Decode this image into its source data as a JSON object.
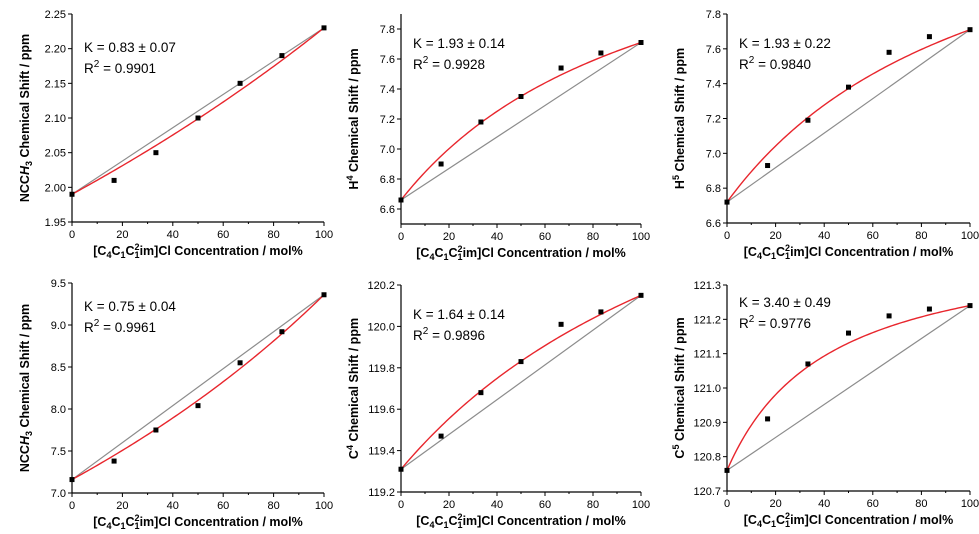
{
  "colors": {
    "fit": "#e8262d",
    "linear": "#8c8c8c",
    "points": "#000000"
  },
  "chart_data": [
    {
      "type": "scatter",
      "panel": "top-left",
      "ylabel": "NCCH3 Chemical Shift / ppm",
      "xlabel": "[C4C1C12im]Cl Concentration / mol%",
      "ylim": [
        1.95,
        2.25
      ],
      "xlim": [
        0,
        100
      ],
      "xticks": [
        0,
        20,
        40,
        60,
        80,
        100
      ],
      "yticks": [
        1.95,
        2.0,
        2.05,
        2.1,
        2.15,
        2.2,
        2.25
      ],
      "ytick_labels": [
        "1.95",
        "2.00",
        "2.05",
        "2.10",
        "2.15",
        "2.20",
        "2.25"
      ],
      "annotation_k": "K = 0.83 ± 0.07",
      "annotation_r2_label": "R",
      "annotation_r2_value": " = 0.9901",
      "K": 0.83,
      "x": [
        0,
        16.7,
        33.3,
        50,
        66.7,
        83.3,
        100
      ],
      "y": [
        1.99,
        2.01,
        2.05,
        2.1,
        2.15,
        2.19,
        2.23
      ]
    },
    {
      "type": "scatter",
      "panel": "top-middle",
      "ylabel": "H4 Chemical Shift / ppm",
      "xlabel": "[C4C1C12im]Cl Concentration / mol%",
      "ylim": [
        6.5,
        7.9
      ],
      "xlim": [
        0,
        100
      ],
      "xticks": [
        0,
        20,
        40,
        60,
        80,
        100
      ],
      "yticks": [
        6.6,
        6.8,
        7.0,
        7.2,
        7.4,
        7.6,
        7.8
      ],
      "ytick_labels": [
        "6.6",
        "6.8",
        "7.0",
        "7.2",
        "7.4",
        "7.6",
        "7.8"
      ],
      "annotation_k": "K = 1.93 ± 0.14",
      "annotation_r2_label": "R",
      "annotation_r2_value": " = 0.9928",
      "K": 1.93,
      "x": [
        0,
        16.7,
        33.3,
        50,
        66.7,
        83.3,
        100
      ],
      "y": [
        6.66,
        6.9,
        7.18,
        7.35,
        7.54,
        7.64,
        7.71
      ]
    },
    {
      "type": "scatter",
      "panel": "top-right",
      "ylabel": "H5 Chemical Shift / ppm",
      "xlabel": "[C4C1C12im]Cl Concentration / mol%",
      "ylim": [
        6.6,
        7.8
      ],
      "xlim": [
        0,
        100
      ],
      "xticks": [
        0,
        20,
        40,
        60,
        80,
        100
      ],
      "yticks": [
        6.6,
        6.8,
        7.0,
        7.2,
        7.4,
        7.6,
        7.8
      ],
      "ytick_labels": [
        "6.6",
        "6.8",
        "7.0",
        "7.2",
        "7.4",
        "7.6",
        "7.8"
      ],
      "annotation_k": "K = 1.93 ± 0.22",
      "annotation_r2_label": "R",
      "annotation_r2_value": " = 0.9840",
      "K": 1.93,
      "x": [
        0,
        16.7,
        33.3,
        50,
        66.7,
        83.3,
        100
      ],
      "y": [
        6.72,
        6.93,
        7.19,
        7.38,
        7.58,
        7.67,
        7.71
      ]
    },
    {
      "type": "scatter",
      "panel": "bottom-left",
      "ylabel": "NCCH3 Chemical Shift / ppm",
      "xlabel": "[C4C1C12im]Cl Concentration / mol%",
      "ylim": [
        7.0,
        9.5
      ],
      "xlim": [
        0,
        100
      ],
      "xticks": [
        0,
        20,
        40,
        60,
        80,
        100
      ],
      "yticks": [
        7.0,
        7.5,
        8.0,
        8.5,
        9.0,
        9.5
      ],
      "ytick_labels": [
        "7.0",
        "7.5",
        "8.0",
        "8.5",
        "9.0",
        "9.5"
      ],
      "annotation_k": "K = 0.75 ± 0.04",
      "annotation_r2_label": "R",
      "annotation_r2_value": " = 0.9961",
      "K": 0.75,
      "x": [
        0,
        16.7,
        33.3,
        50,
        66.7,
        83.3,
        100
      ],
      "y": [
        7.16,
        7.38,
        7.75,
        8.04,
        8.55,
        8.92,
        9.36
      ]
    },
    {
      "type": "scatter",
      "panel": "bottom-middle",
      "ylabel": "C4 Chemical Shift / ppm",
      "xlabel": "[C4C1C12im]Cl Concentration / mol%",
      "ylim": [
        119.2,
        120.2
      ],
      "xlim": [
        0,
        100
      ],
      "xticks": [
        0,
        20,
        40,
        60,
        80,
        100
      ],
      "yticks": [
        119.2,
        119.4,
        119.6,
        119.8,
        120.0,
        120.2
      ],
      "ytick_labels": [
        "119.2",
        "119.4",
        "119.6",
        "119.8",
        "120.0",
        "120.2"
      ],
      "annotation_k": "K = 1.64 ± 0.14",
      "annotation_r2_label": "R",
      "annotation_r2_value": " = 0.9896",
      "K": 1.64,
      "x": [
        0,
        16.7,
        33.3,
        50,
        66.7,
        83.3,
        100
      ],
      "y": [
        119.31,
        119.47,
        119.68,
        119.83,
        120.01,
        120.07,
        120.15
      ]
    },
    {
      "type": "scatter",
      "panel": "bottom-right",
      "ylabel": "C5 Chemical Shift / ppm",
      "xlabel": "[C4C1C12im]Cl Concentration / mol%",
      "ylim": [
        120.7,
        121.3
      ],
      "xlim": [
        0,
        100
      ],
      "xticks": [
        0,
        20,
        40,
        60,
        80,
        100
      ],
      "yticks": [
        120.7,
        120.8,
        120.9,
        121.0,
        121.1,
        121.2,
        121.3
      ],
      "ytick_labels": [
        "120.7",
        "120.8",
        "120.9",
        "121.0",
        "121.1",
        "121.2",
        "121.3"
      ],
      "annotation_k": "K = 3.40 ± 0.49",
      "annotation_r2_label": "R",
      "annotation_r2_value": " = 0.9776",
      "K": 3.4,
      "x": [
        0,
        16.7,
        33.3,
        50,
        66.7,
        83.3,
        100
      ],
      "y": [
        120.76,
        120.91,
        121.07,
        121.16,
        121.21,
        121.23,
        121.24
      ]
    }
  ]
}
